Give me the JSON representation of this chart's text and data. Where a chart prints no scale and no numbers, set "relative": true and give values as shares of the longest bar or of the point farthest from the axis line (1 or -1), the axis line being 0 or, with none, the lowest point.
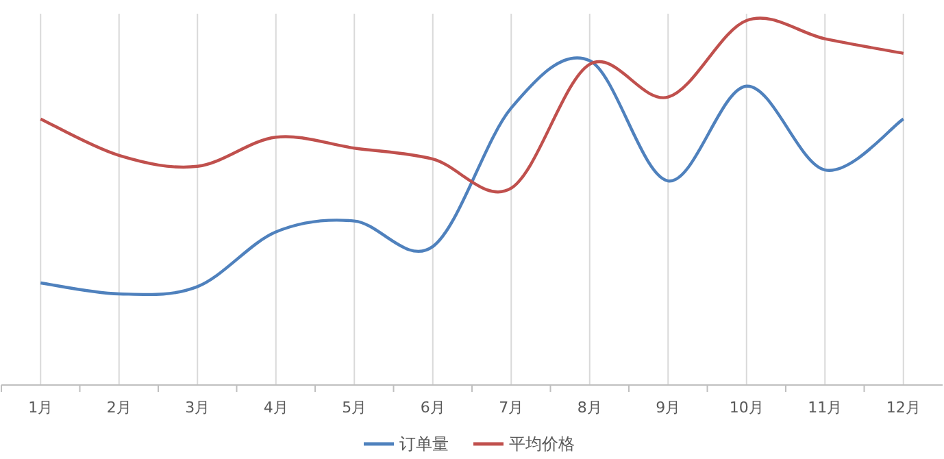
{
  "chart_data": {
    "type": "line",
    "relative": true,
    "grid": "x",
    "legend": "bottom",
    "categories": [
      "1月",
      "2月",
      "3月",
      "4月",
      "5月",
      "6月",
      "7月",
      "8月",
      "9月",
      "10月",
      "11月",
      "12月"
    ],
    "series": [
      {
        "name": "订单量",
        "color": "#4f81bd",
        "values": [
          0.28,
          0.25,
          0.27,
          0.42,
          0.45,
          0.38,
          0.76,
          0.89,
          0.56,
          0.82,
          0.59,
          0.73
        ]
      },
      {
        "name": "平均价格",
        "color": "#c0504d",
        "values": [
          0.73,
          0.63,
          0.6,
          0.68,
          0.65,
          0.62,
          0.54,
          0.88,
          0.79,
          1.0,
          0.95,
          0.91
        ]
      }
    ]
  }
}
